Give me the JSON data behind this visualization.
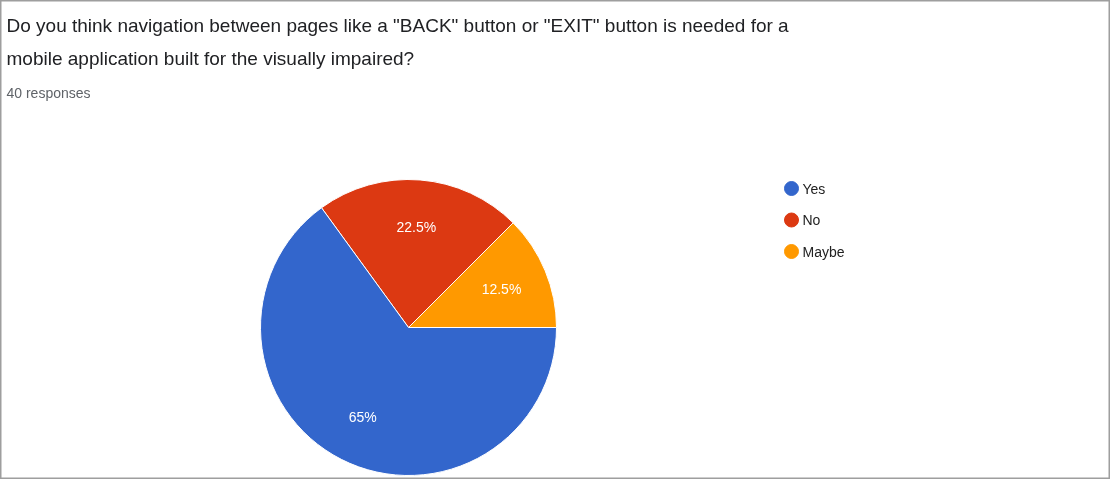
{
  "chart_data": {
    "type": "pie",
    "title": "Do you think navigation between pages like a \"BACK\" button or \"EXIT\" button is needed for a mobile application built for the visually impaired?",
    "subtitle": "40 responses",
    "categories": [
      "Yes",
      "No",
      "Maybe"
    ],
    "values": [
      65,
      22.5,
      12.5
    ],
    "colors": [
      "#3366cc",
      "#dc3912",
      "#ff9900"
    ],
    "value_labels": [
      "65%",
      "22.5%",
      "12.5%"
    ],
    "legend": "right"
  }
}
